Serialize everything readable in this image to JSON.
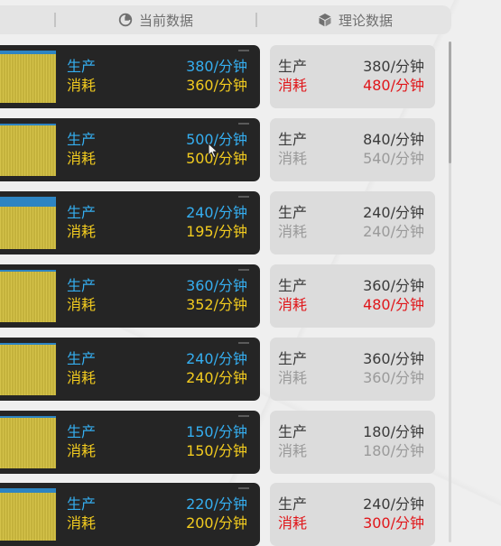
{
  "header": {
    "current_label": "当前数据",
    "current_icon": "pie-chart-icon",
    "theory_label": "理论数据",
    "theory_icon": "cube-icon"
  },
  "rows": [
    {
      "current": {
        "produce_label": "生产",
        "produce_value": "380/分钟",
        "consume_label": "消耗",
        "consume_value": "360/分钟"
      },
      "theory": {
        "produce_label": "生产",
        "produce_value": "380/分钟",
        "consume_label": "消耗",
        "consume_value": "480/分钟",
        "consume_highlight": true
      }
    },
    {
      "current": {
        "produce_label": "生产",
        "produce_value": "500/分钟",
        "consume_label": "消耗",
        "consume_value": "500/分钟"
      },
      "theory": {
        "produce_label": "生产",
        "produce_value": "840/分钟",
        "consume_label": "消耗",
        "consume_value": "540/分钟",
        "consume_highlight": false
      }
    },
    {
      "current": {
        "produce_label": "生产",
        "produce_value": "240/分钟",
        "consume_label": "消耗",
        "consume_value": "195/分钟"
      },
      "theory": {
        "produce_label": "生产",
        "produce_value": "240/分钟",
        "consume_label": "消耗",
        "consume_value": "240/分钟",
        "consume_highlight": false
      }
    },
    {
      "current": {
        "produce_label": "生产",
        "produce_value": "360/分钟",
        "consume_label": "消耗",
        "consume_value": "352/分钟"
      },
      "theory": {
        "produce_label": "生产",
        "produce_value": "360/分钟",
        "consume_label": "消耗",
        "consume_value": "480/分钟",
        "consume_highlight": true
      }
    },
    {
      "current": {
        "produce_label": "生产",
        "produce_value": "240/分钟",
        "consume_label": "消耗",
        "consume_value": "240/分钟"
      },
      "theory": {
        "produce_label": "生产",
        "produce_value": "360/分钟",
        "consume_label": "消耗",
        "consume_value": "360/分钟",
        "consume_highlight": false
      }
    },
    {
      "current": {
        "produce_label": "生产",
        "produce_value": "150/分钟",
        "consume_label": "消耗",
        "consume_value": "150/分钟"
      },
      "theory": {
        "produce_label": "生产",
        "produce_value": "180/分钟",
        "consume_label": "消耗",
        "consume_value": "180/分钟",
        "consume_highlight": false
      }
    },
    {
      "current": {
        "produce_label": "生产",
        "produce_value": "220/分钟",
        "consume_label": "消耗",
        "consume_value": "200/分钟"
      },
      "theory": {
        "produce_label": "生产",
        "produce_value": "240/分钟",
        "consume_label": "消耗",
        "consume_value": "300/分钟",
        "consume_highlight": true
      }
    }
  ],
  "colors": {
    "produce_current": "#35aef0",
    "consume_current": "#f2cb1f",
    "deficit": "#e0161a",
    "card_dark": "#252525",
    "card_light": "#dcdcdc"
  }
}
